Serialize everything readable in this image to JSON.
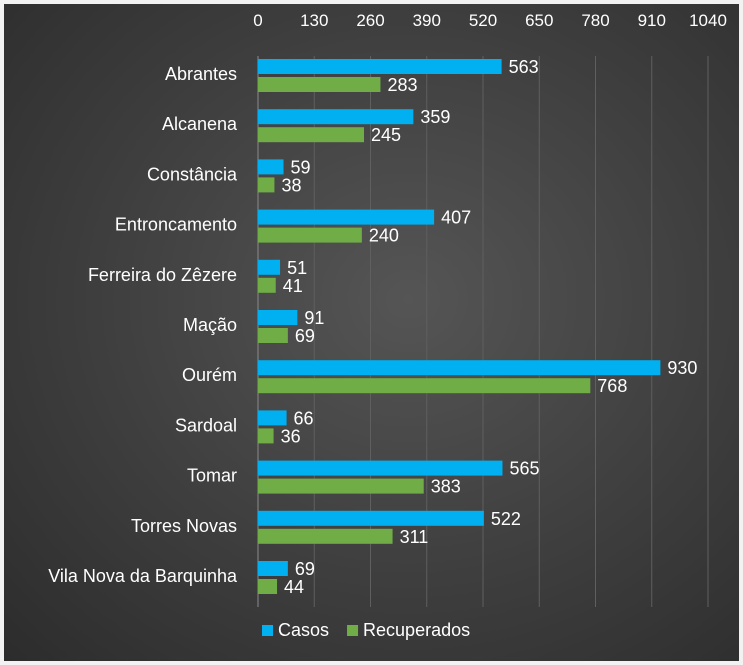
{
  "chart_data": {
    "type": "bar",
    "orientation": "horizontal",
    "categories": [
      "Abrantes",
      "Alcanena",
      "Constância",
      "Entroncamento",
      "Ferreira do Zêzere",
      "Mação",
      "Ourém",
      "Sardoal",
      "Tomar",
      "Torres Novas",
      "Vila Nova da Barquinha"
    ],
    "series": [
      {
        "name": "Casos",
        "color": "#00b0f0",
        "values": [
          563,
          359,
          59,
          407,
          51,
          91,
          930,
          66,
          565,
          522,
          69
        ]
      },
      {
        "name": "Recuperados",
        "color": "#70ad47",
        "values": [
          283,
          245,
          38,
          240,
          41,
          69,
          768,
          36,
          383,
          311,
          44
        ]
      }
    ],
    "xlim": [
      0,
      1040
    ],
    "xticks": [
      0,
      130,
      260,
      390,
      520,
      650,
      780,
      910,
      1040
    ],
    "x_axis_position": "top",
    "grid": true,
    "legend_position": "bottom",
    "data_labels": true
  }
}
